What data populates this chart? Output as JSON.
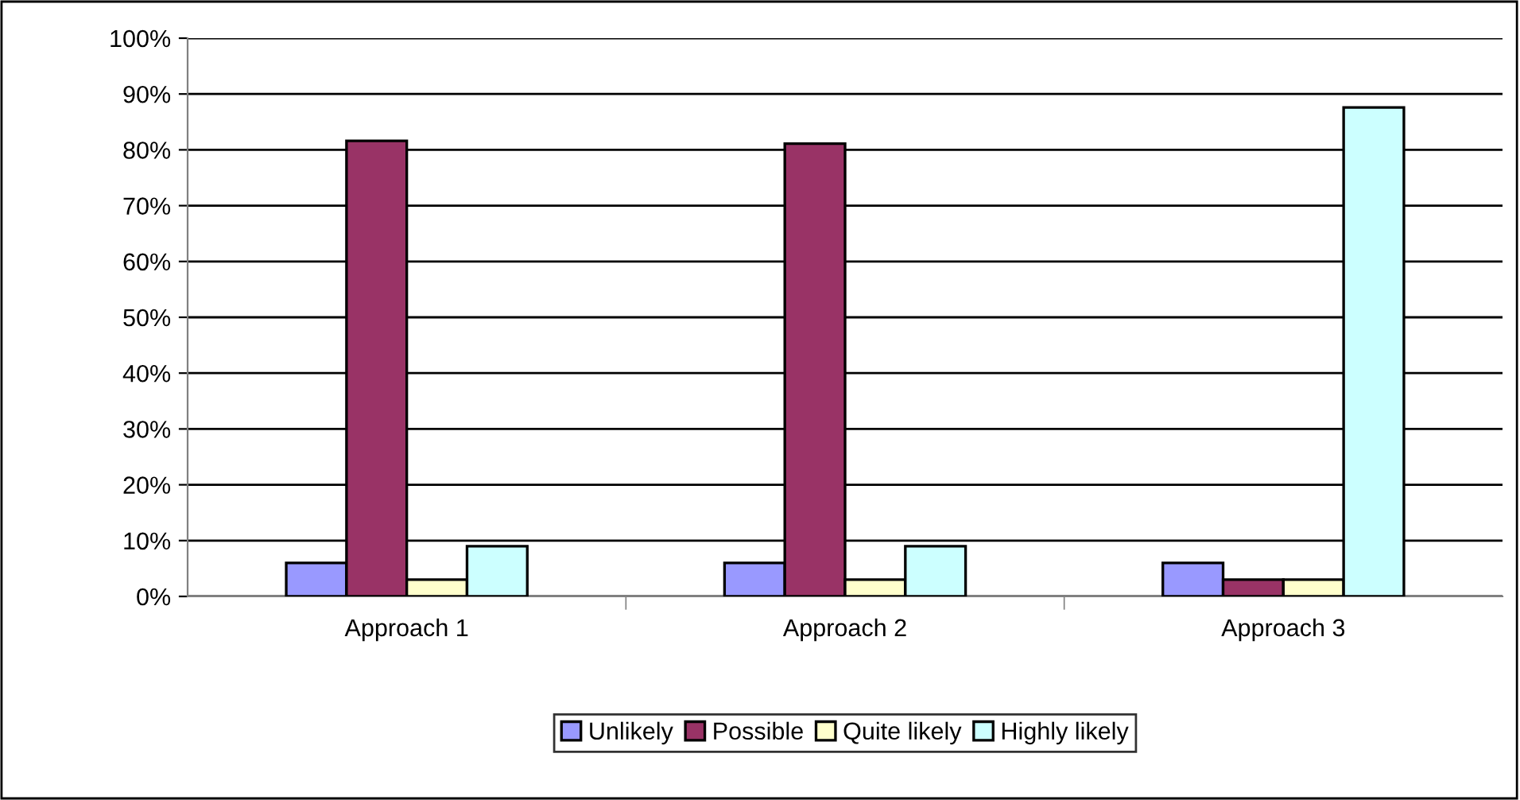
{
  "chart_data": {
    "type": "bar",
    "categories": [
      "Approach 1",
      "Approach 2",
      "Approach 3"
    ],
    "series": [
      {
        "name": "Unlikely",
        "color": "#9999ff",
        "values": [
          6,
          6,
          6
        ]
      },
      {
        "name": "Possible",
        "color": "#993366",
        "values": [
          81.6,
          81.1,
          3
        ]
      },
      {
        "name": "Quite likely",
        "color": "#ffffcc",
        "values": [
          3,
          3,
          3
        ]
      },
      {
        "name": "Highly likely",
        "color": "#ccffff",
        "values": [
          9,
          9,
          87.6
        ]
      }
    ],
    "ylim": [
      0,
      100
    ],
    "yticks": [
      {
        "value": 0,
        "label": "0%"
      },
      {
        "value": 10,
        "label": "10%"
      },
      {
        "value": 20,
        "label": "20%"
      },
      {
        "value": 30,
        "label": "30%"
      },
      {
        "value": 40,
        "label": "40%"
      },
      {
        "value": 50,
        "label": "50%"
      },
      {
        "value": 60,
        "label": "60%"
      },
      {
        "value": 70,
        "label": "70%"
      },
      {
        "value": 80,
        "label": "80%"
      },
      {
        "value": 90,
        "label": "90%"
      },
      {
        "value": 100,
        "label": "100%"
      }
    ],
    "grid": "y",
    "legend": "bottom"
  }
}
